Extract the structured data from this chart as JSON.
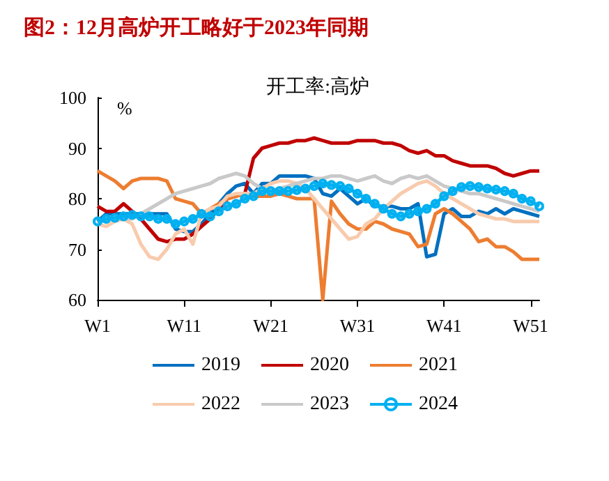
{
  "chart_data": {
    "type": "line",
    "title": "图2：12月高炉开工略好于2023年同期",
    "subtitle": "开工率:高炉",
    "ylabel": "%",
    "categories": [
      "W1",
      null,
      null,
      null,
      null,
      null,
      null,
      null,
      null,
      null,
      "W11",
      null,
      null,
      null,
      null,
      null,
      null,
      null,
      null,
      null,
      "W21",
      null,
      null,
      null,
      null,
      null,
      null,
      null,
      null,
      null,
      "W31",
      null,
      null,
      null,
      null,
      null,
      null,
      null,
      null,
      null,
      "W41",
      null,
      null,
      null,
      null,
      null,
      null,
      null,
      null,
      null,
      "W51",
      null
    ],
    "ylim": [
      60,
      100
    ],
    "yticks": [
      60,
      70,
      80,
      90,
      100
    ],
    "grid": false,
    "legend": "bottom",
    "marker": "none",
    "line_style": "solid",
    "series": [
      {
        "name": "2019",
        "color": "#0070c0",
        "values": [
          75.5,
          77,
          77,
          77,
          77,
          77,
          77,
          77,
          77,
          74,
          73.5,
          73.5,
          75,
          77,
          79,
          81,
          82.5,
          83,
          81,
          83,
          83,
          84.5,
          84.5,
          84.5,
          84.5,
          84,
          81,
          80.5,
          82,
          80.5,
          79,
          80,
          78.5,
          78.5,
          78.5,
          78,
          78,
          79,
          68.5,
          69,
          77,
          78,
          76.5,
          76.5,
          77.5,
          77,
          78,
          77,
          78,
          77.5,
          77,
          76.5
        ]
      },
      {
        "name": "2020",
        "color": "#c00000",
        "values": [
          78.5,
          77.5,
          77.5,
          79,
          77.5,
          76,
          74,
          72,
          71.5,
          72,
          72,
          73,
          74.5,
          76,
          78,
          80,
          80.5,
          81,
          88,
          90,
          90.5,
          91,
          91,
          91.5,
          91.5,
          92,
          91.5,
          91,
          91,
          91,
          91.5,
          91.5,
          91.5,
          91,
          91,
          90.5,
          89.5,
          89,
          89.5,
          88.5,
          88.5,
          87.5,
          87,
          86.5,
          86.5,
          86.5,
          86,
          85,
          84.5,
          85,
          85.5,
          85.5
        ]
      },
      {
        "name": "2021",
        "color": "#ed7d31",
        "values": [
          85.5,
          84.5,
          83.5,
          82,
          83.5,
          84,
          84,
          84,
          83.5,
          80,
          79.5,
          79,
          77,
          78,
          79,
          80,
          80.5,
          81,
          80.5,
          80.5,
          80.5,
          81,
          80.5,
          80,
          80,
          80,
          60,
          79.5,
          77,
          75,
          74,
          74,
          75.5,
          75,
          74,
          73.5,
          73,
          70.5,
          71,
          77,
          78,
          77,
          75.5,
          74,
          71.5,
          72,
          70.5,
          70.5,
          69.5,
          68,
          68,
          68
        ]
      },
      {
        "name": "2022",
        "color": "#f8cbad",
        "values": [
          75,
          74.5,
          75.5,
          76,
          75,
          71,
          68.5,
          68,
          70,
          73,
          74,
          71,
          77,
          78,
          78.5,
          80.5,
          81,
          81,
          81,
          82,
          83,
          83.5,
          83.5,
          83,
          82,
          80,
          78,
          76,
          74,
          72,
          72.5,
          75,
          76,
          78,
          79.5,
          81,
          82,
          83,
          83.5,
          82.5,
          81,
          80,
          79,
          78,
          77,
          76.5,
          76,
          76,
          75.5,
          75.5,
          75.5,
          75.5
        ]
      },
      {
        "name": "2023",
        "color": "#c9c9c9",
        "values": [
          75,
          76,
          76,
          76,
          76,
          77,
          78,
          79,
          80,
          81,
          81.5,
          82,
          82.5,
          83,
          84,
          84.5,
          85,
          84.5,
          83,
          82,
          81.5,
          82,
          82.5,
          83,
          83.5,
          84,
          84,
          84.5,
          84.5,
          84,
          83.5,
          84,
          84.5,
          83.5,
          83,
          84,
          84.5,
          84,
          84.5,
          83.5,
          82.5,
          82,
          81.5,
          81,
          81,
          80.5,
          80,
          79.5,
          79,
          78.5,
          78,
          77.5
        ]
      },
      {
        "name": "2024",
        "color": "#00b0f0",
        "marker": "circle",
        "values": [
          75.5,
          76,
          76.2,
          76.5,
          76.8,
          76.5,
          76.5,
          76,
          76,
          75,
          75.5,
          76,
          77,
          76.5,
          77.5,
          78.5,
          79,
          80,
          80.5,
          81.5,
          81.5,
          81.5,
          81.5,
          81.7,
          82,
          82.5,
          83,
          82.7,
          82.5,
          82,
          81,
          80,
          79,
          78,
          77,
          76.5,
          77,
          77.5,
          78,
          79,
          80.5,
          81.5,
          82.3,
          82.5,
          82.3,
          82,
          81.8,
          81.5,
          81,
          80,
          79.5,
          78.5
        ]
      }
    ]
  }
}
